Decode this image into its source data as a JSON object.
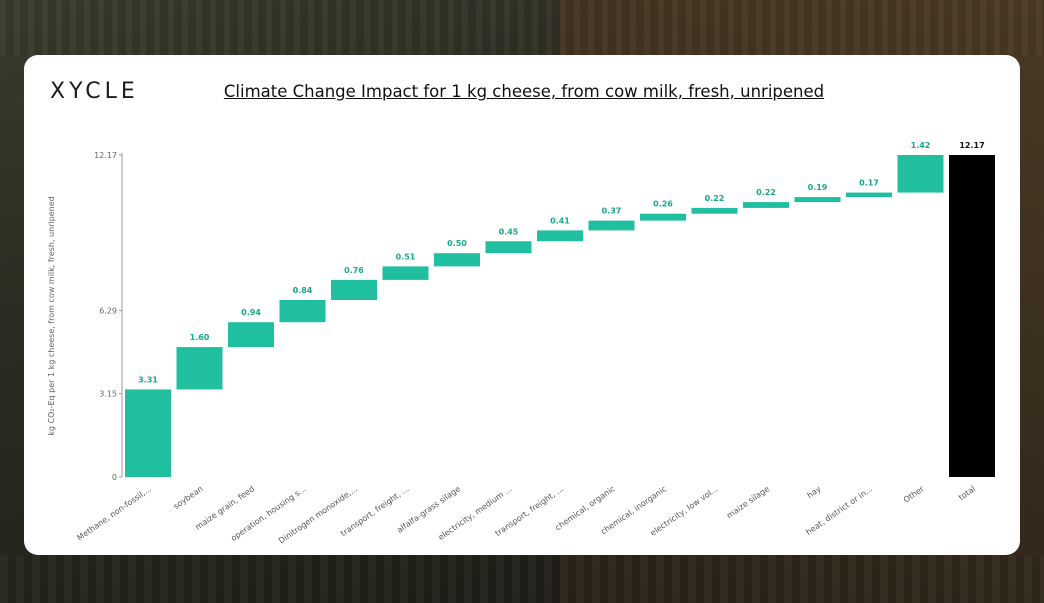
{
  "logo": {
    "text": "XYCLE"
  },
  "chart_data": {
    "type": "waterfall",
    "title": "Climate Change Impact for 1 kg cheese, from cow milk, fresh, unripened",
    "ylabel": "kg CO₂-Eq per 1 kg cheese, from cow milk, fresh, unripened",
    "xlabel": "",
    "yticks": [
      "0",
      "3.15",
      "6.29",
      "12.17"
    ],
    "ylim": [
      0,
      12.17
    ],
    "categories": [
      "Methane, non-fossil,...",
      "soybean",
      "maize grain, feed",
      "operation, housing s...",
      "Dinitrogen monoxide,...",
      "transport, freight, ...",
      "alfalfa-grass silage",
      "electricity, medium ...",
      "transport, freight, ...",
      "chemical, organic",
      "chemical, inorganic",
      "electricity, low vol...",
      "maize silage",
      "hay",
      "heat, district or in...",
      "Other",
      "total"
    ],
    "values": [
      3.31,
      1.6,
      0.94,
      0.84,
      0.76,
      0.51,
      0.5,
      0.45,
      0.41,
      0.37,
      0.26,
      0.22,
      0.22,
      0.19,
      0.17,
      1.42,
      12.17
    ],
    "labels": [
      "3.31",
      "1.60",
      "0.94",
      "0.84",
      "0.76",
      "0.51",
      "0.50",
      "0.45",
      "0.41",
      "0.37",
      "0.26",
      "0.22",
      "0.22",
      "0.19",
      "0.17",
      "1.42",
      "12.17"
    ],
    "colors": {
      "step": "#1fbfa0",
      "step_label": "#17a88c",
      "total": "#000000",
      "total_label": "#111111",
      "axis": "#999999"
    }
  }
}
